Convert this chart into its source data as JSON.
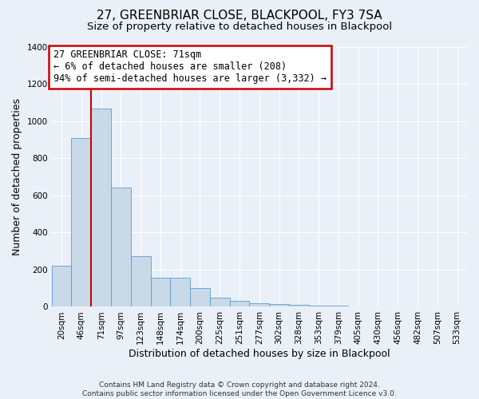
{
  "title": "27, GREENBRIAR CLOSE, BLACKPOOL, FY3 7SA",
  "subtitle": "Size of property relative to detached houses in Blackpool",
  "xlabel": "Distribution of detached houses by size in Blackpool",
  "ylabel": "Number of detached properties",
  "footer1": "Contains HM Land Registry data © Crown copyright and database right 2024.",
  "footer2": "Contains public sector information licensed under the Open Government Licence v3.0.",
  "bin_labels": [
    "20sqm",
    "46sqm",
    "71sqm",
    "97sqm",
    "123sqm",
    "148sqm",
    "174sqm",
    "200sqm",
    "225sqm",
    "251sqm",
    "277sqm",
    "302sqm",
    "328sqm",
    "353sqm",
    "379sqm",
    "405sqm",
    "430sqm",
    "456sqm",
    "482sqm",
    "507sqm",
    "533sqm"
  ],
  "bar_values": [
    220,
    910,
    1070,
    645,
    275,
    155,
    155,
    100,
    50,
    30,
    20,
    15,
    10,
    8,
    5,
    4,
    3,
    2,
    1,
    1,
    0
  ],
  "bar_color": "#c9d9e8",
  "bar_edge_color": "#5b9bd5",
  "red_line_index": 2,
  "annotation_text": "27 GREENBRIAR CLOSE: 71sqm\n← 6% of detached houses are smaller (208)\n94% of semi-detached houses are larger (3,332) →",
  "annotation_box_color": "#ffffff",
  "annotation_border_color": "#cc0000",
  "red_line_color": "#cc0000",
  "ylim": [
    0,
    1400
  ],
  "background_color": "#eaf0f8",
  "grid_color": "#ffffff",
  "title_fontsize": 11,
  "subtitle_fontsize": 9.5,
  "axis_label_fontsize": 9,
  "tick_fontsize": 7.5,
  "annotation_fontsize": 8.5
}
